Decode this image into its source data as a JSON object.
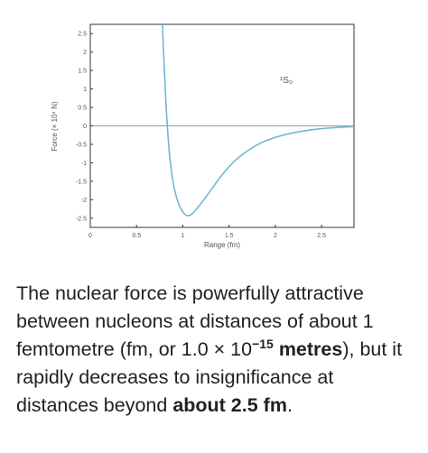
{
  "chart_data": {
    "type": "line",
    "title": "",
    "xlabel": "Range (fm)",
    "ylabel": "Force (× 10⁴ N)",
    "xlim": [
      0,
      2.85
    ],
    "ylim": [
      -2.75,
      2.75
    ],
    "x_ticks": [
      0,
      0.5,
      1,
      1.5,
      2,
      2.5
    ],
    "x_tick_labels": [
      "0",
      "0.5",
      "1",
      "1.5",
      "2",
      "2.5"
    ],
    "y_ticks": [
      2.5,
      2,
      1.5,
      1,
      0.5,
      0,
      -0.5,
      -1,
      -1.5,
      -2,
      -2.5
    ],
    "y_tick_labels": [
      "2.5",
      "2",
      "1.5",
      "1",
      "0.5",
      "0",
      "-0.5",
      "-1",
      "-1.5",
      "-2",
      "-2.5"
    ],
    "grid": false,
    "zero_line": true,
    "annotation": "¹S₀",
    "line_color": "#6fb8d2",
    "series": [
      {
        "x": [
          0.78,
          0.8,
          0.82,
          0.84,
          0.86,
          0.9,
          0.95,
          1.0,
          1.05,
          1.1,
          1.2,
          1.3,
          1.4,
          1.5,
          1.6,
          1.8,
          2.0,
          2.2,
          2.4,
          2.6,
          2.85
        ],
        "y": [
          2.75,
          1.5,
          0.5,
          -0.3,
          -0.9,
          -1.65,
          -2.1,
          -2.35,
          -2.45,
          -2.4,
          -2.1,
          -1.75,
          -1.4,
          -1.1,
          -0.85,
          -0.5,
          -0.3,
          -0.18,
          -0.1,
          -0.05,
          -0.02
        ]
      }
    ]
  },
  "caption": {
    "part1": "The nuclear force is powerfully attractive between nucleons at distances of about 1 femtometre (fm, or 1.0 × 10",
    "exponent": "−15",
    "bold1": " metres",
    "part2": "), but it rapidly decreases to insignificance at distances beyond ",
    "bold2": "about 2.5 fm",
    "part3": "."
  }
}
